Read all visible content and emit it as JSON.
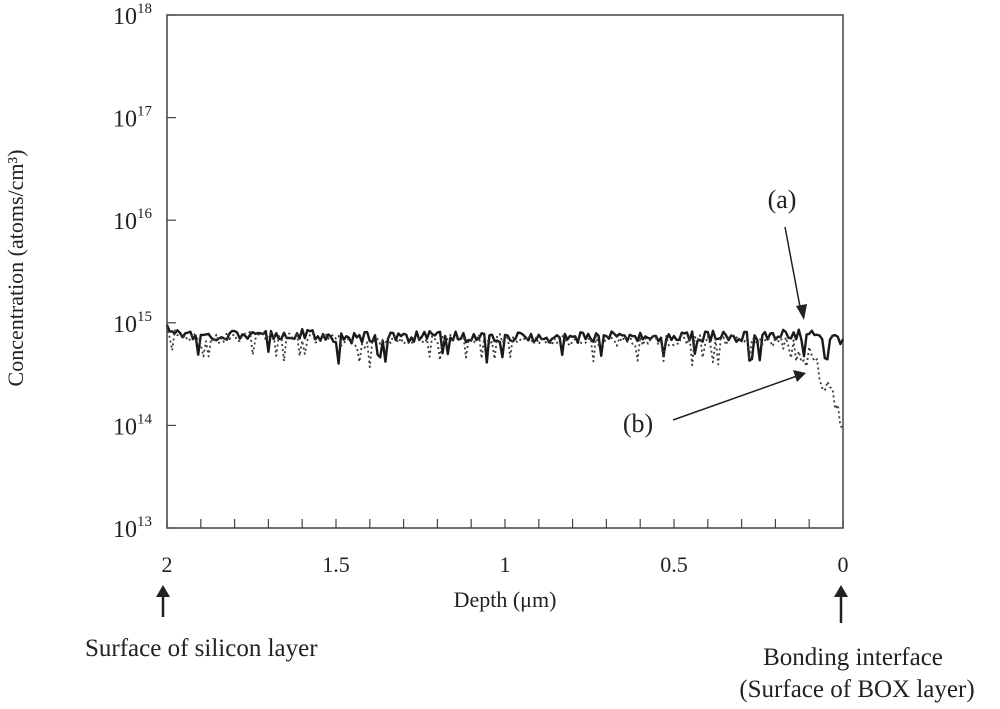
{
  "chart_data": {
    "type": "line",
    "title": "",
    "xlabel": "Depth (μm)",
    "ylabel": "Concentration (atoms/cm³)",
    "x_reversed": true,
    "y_scale": "log",
    "xlim": [
      2,
      0
    ],
    "ylim": [
      10000000000000.0,
      1e+18
    ],
    "x_ticks": [
      {
        "value": 2,
        "label": "2"
      },
      {
        "value": 1.5,
        "label": "1.5"
      },
      {
        "value": 1,
        "label": "1"
      },
      {
        "value": 0.5,
        "label": "0.5"
      },
      {
        "value": 0,
        "label": "0"
      }
    ],
    "y_ticks": [
      {
        "value": 10000000000000.0,
        "base": "10",
        "exp": "13"
      },
      {
        "value": 100000000000000.0,
        "base": "10",
        "exp": "14"
      },
      {
        "value": 1000000000000000.0,
        "base": "10",
        "exp": "15"
      },
      {
        "value": 1e+16,
        "base": "10",
        "exp": "16"
      },
      {
        "value": 1e+17,
        "base": "10",
        "exp": "17"
      },
      {
        "value": 1e+18,
        "base": "10",
        "exp": "18"
      }
    ],
    "grid": false,
    "legend": "none",
    "series": [
      {
        "name": "(a)",
        "style": "solid",
        "color": "#1a1a1a",
        "x": [
          2.0,
          1.9,
          1.8,
          1.7,
          1.6,
          1.5,
          1.4,
          1.3,
          1.2,
          1.1,
          1.0,
          0.9,
          0.8,
          0.7,
          0.6,
          0.5,
          0.4,
          0.3,
          0.2,
          0.1,
          0.05,
          0.0
        ],
        "y": [
          900000000000000.0,
          750000000000000.0,
          800000000000000.0,
          780000000000000.0,
          800000000000000.0,
          720000000000000.0,
          750000000000000.0,
          750000000000000.0,
          760000000000000.0,
          740000000000000.0,
          750000000000000.0,
          730000000000000.0,
          740000000000000.0,
          750000000000000.0,
          740000000000000.0,
          750000000000000.0,
          760000000000000.0,
          750000000000000.0,
          780000000000000.0,
          780000000000000.0,
          740000000000000.0,
          700000000000000.0
        ]
      },
      {
        "name": "(b)",
        "style": "dotted",
        "color": "#3a3a3a",
        "x": [
          2.0,
          1.9,
          1.8,
          1.7,
          1.6,
          1.5,
          1.4,
          1.3,
          1.2,
          1.1,
          1.0,
          0.9,
          0.8,
          0.7,
          0.6,
          0.5,
          0.4,
          0.3,
          0.2,
          0.15,
          0.1,
          0.08,
          0.06,
          0.04,
          0.02,
          0.0
        ],
        "y": [
          850000000000000.0,
          700000000000000.0,
          750000000000000.0,
          750000000000000.0,
          760000000000000.0,
          700000000000000.0,
          650000000000000.0,
          720000000000000.0,
          700000000000000.0,
          700000000000000.0,
          720000000000000.0,
          700000000000000.0,
          680000000000000.0,
          700000000000000.0,
          680000000000000.0,
          700000000000000.0,
          700000000000000.0,
          700000000000000.0,
          680000000000000.0,
          600000000000000.0,
          500000000000000.0,
          400000000000000.0,
          300000000000000.0,
          250000000000000.0,
          180000000000000.0,
          110000000000000.0
        ]
      }
    ],
    "annotations": [
      {
        "text": "(a)",
        "series": 0
      },
      {
        "text": "(b)",
        "series": 1
      },
      {
        "text": "Surface of silicon layer"
      },
      {
        "text": "Bonding interface"
      },
      {
        "text": "(Surface of BOX layer)"
      }
    ]
  }
}
